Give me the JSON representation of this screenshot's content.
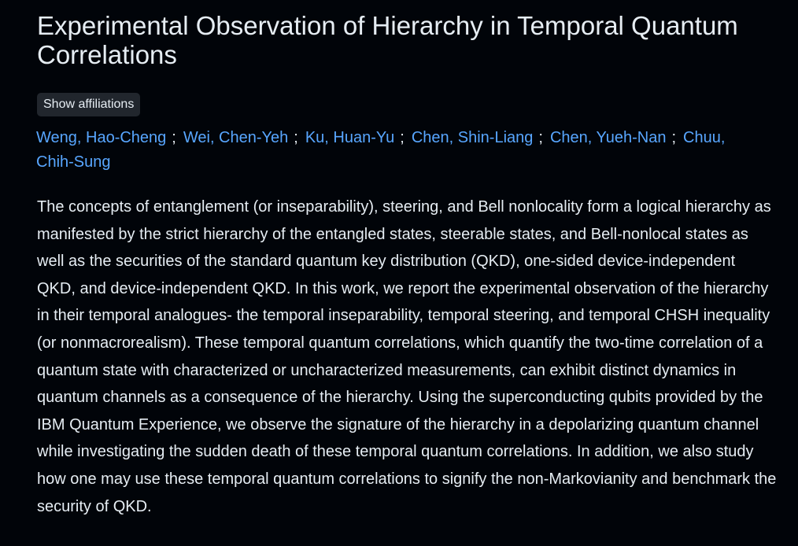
{
  "title": "Experimental Observation of Hierarchy in Temporal Quantum Correlations",
  "affiliations_button": "Show affiliations",
  "authors": [
    "Weng, Hao-Cheng",
    "Wei, Chen-Yeh",
    "Ku, Huan-Yu",
    "Chen, Shin-Liang",
    "Chen, Yueh-Nan",
    "Chuu, Chih-Sung"
  ],
  "author_separator": ";",
  "abstract": "The concepts of entanglement (or inseparability), steering, and Bell nonlocality form a logical hierarchy as manifested by the strict hierarchy of the entangled states, steerable states, and Bell-nonlocal states as well as the securities of the standard quantum key distribution (QKD), one-sided device-independent QKD, and device-independent QKD. In this work, we report the experimental observation of the hierarchy in their temporal analogues- the temporal inseparability, temporal steering, and temporal CHSH inequality (or nonmacrorealism). These temporal quantum correlations, which quantify the two-time correlation of a quantum state with characterized or uncharacterized measurements, can exhibit distinct dynamics in quantum channels as a consequence of the hierarchy. Using the superconducting qubits provided by the IBM Quantum Experience, we observe the signature of the hierarchy in a depolarizing quantum channel while investigating the sudden death of these temporal quantum correlations. In addition, we also study how one may use these temporal quantum correlations to signify the non-Markovianity and benchmark the security of QKD.",
  "colors": {
    "background": "#010409",
    "text": "#e6edf3",
    "link": "#58a6ff",
    "button_bg": "#21262d"
  }
}
